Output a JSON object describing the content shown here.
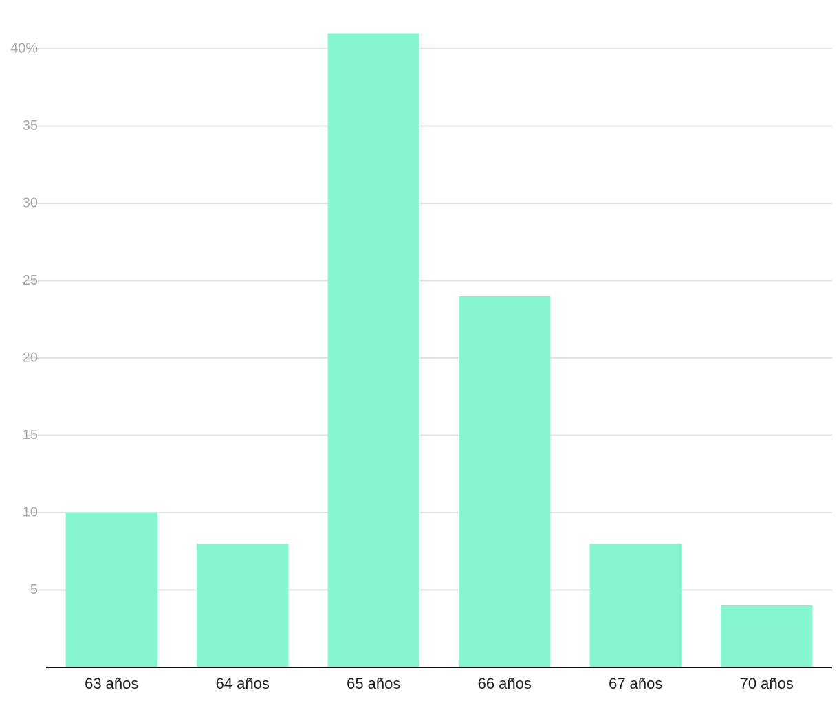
{
  "chart_data": {
    "type": "bar",
    "categories": [
      "63 años",
      "64 años",
      "65 años",
      "66 años",
      "67 años",
      "70 años"
    ],
    "values": [
      10,
      8,
      41,
      24,
      8,
      4
    ],
    "color": "#84f5cd",
    "ylim": [
      0,
      43
    ],
    "yticks": [
      5,
      10,
      15,
      20,
      25,
      30,
      35,
      {
        "value": 40,
        "label": "40%"
      }
    ],
    "grid": true
  }
}
